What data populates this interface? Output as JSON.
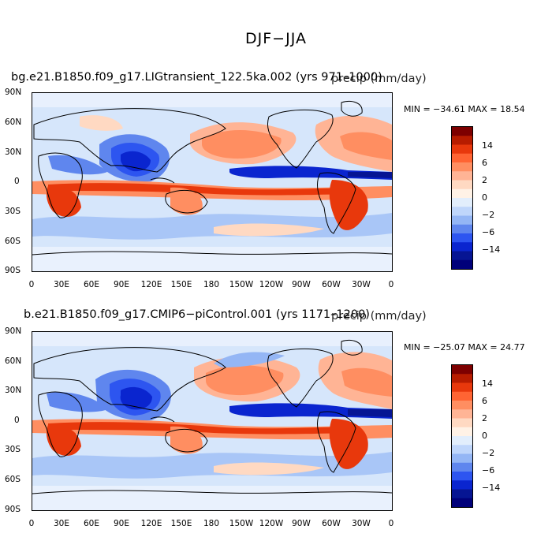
{
  "figure_title": "DJF−JJA",
  "lat_labels": [
    "90N",
    "60N",
    "30N",
    "0",
    "30S",
    "60S",
    "90S"
  ],
  "lon_labels": [
    "0",
    "30E",
    "60E",
    "90E",
    "120E",
    "150E",
    "180",
    "150W",
    "120W",
    "90W",
    "60W",
    "30W",
    "0"
  ],
  "colorbar": {
    "labels": [
      "14",
      "6",
      "2",
      "0",
      "−2",
      "−6",
      "−14"
    ],
    "colors": [
      "#7d0000",
      "#b71c00",
      "#e8380c",
      "#ff6433",
      "#ff8e61",
      "#ffb495",
      "#ffd9c2",
      "#fff2e6",
      "#e2eefc",
      "#bfd6fb",
      "#94b6f5",
      "#5f86ee",
      "#2d55f0",
      "#0a25cf",
      "#061593",
      "#00007a"
    ]
  },
  "panels": [
    {
      "title_left": "bg.e21.B1850.f09_g17.LIGtransient_122.5ka.002 (yrs 971–1000)",
      "title_right": "precip (mm/day)",
      "stats": "MIN = −34.61   MAX =  18.54"
    },
    {
      "title_left": "b.e21.B1850.f09_g17.CMIP6−piControl.001 (yrs 1171–1200)",
      "title_right": "precip (mm/day)",
      "stats": "MIN = −25.07   MAX =  24.77"
    }
  ]
}
